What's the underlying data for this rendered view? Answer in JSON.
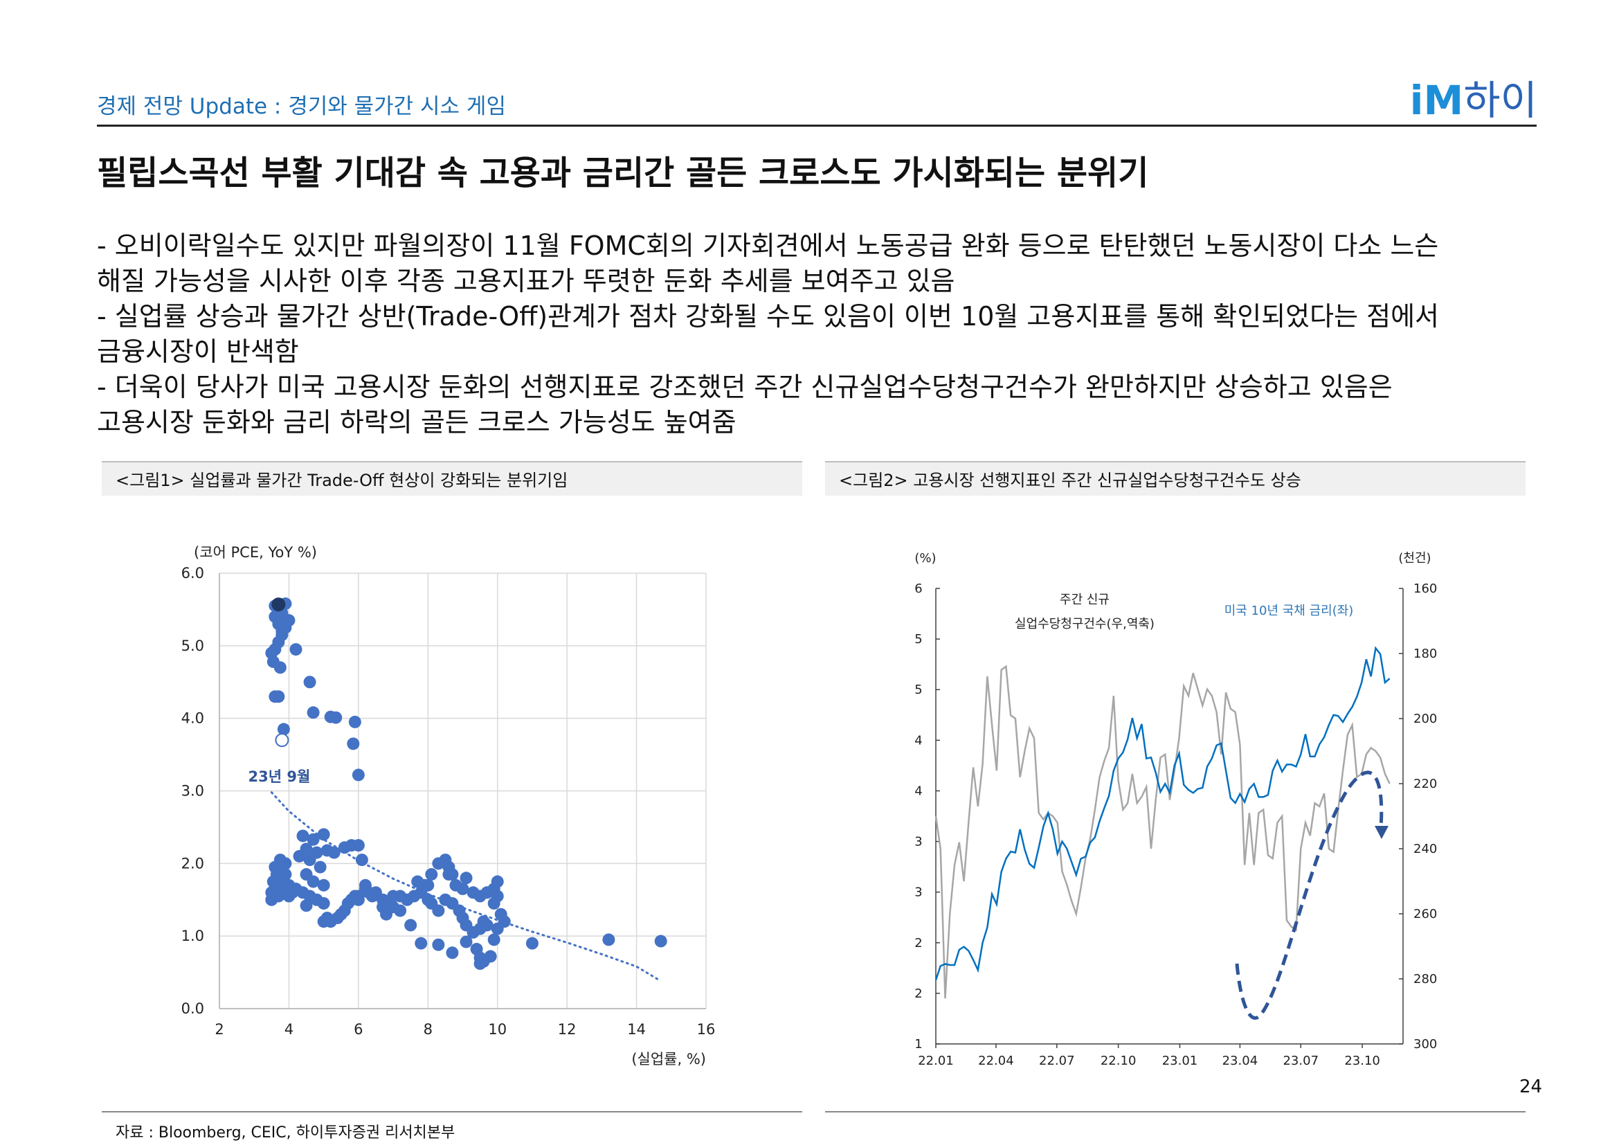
{
  "header": {
    "section_title": "경제 전망 Update : 경기와 물가간 시소 게임",
    "logo_im": "iM",
    "logo_text": "하이"
  },
  "main_title": "필립스곡선 부활 기대감 속 고용과 금리간 골든 크로스도 가시화되는 분위기",
  "bullets": [
    "- 오비이락일수도 있지만 파월의장이 11월 FOMC회의 기자회견에서 노동공급 완화 등으로 탄탄했던 노동시장이 다소 느슨",
    "해질 가능성을 시사한 이후 각종 고용지표가 뚜렷한 둔화 추세를 보여주고 있음",
    "- 실업률 상승과 물가간 상반(Trade-Off)관계가 점차 강화될 수도 있음이 이번 10월 고용지표를 통해 확인되었다는 점에서",
    "금융시장이 반색함",
    "- 더욱이 당사가 미국 고용시장 둔화의 선행지표로 강조했던 주간 신규실업수당청구건수가 완만하지만 상승하고 있음은",
    "고용시장 둔화와 금리 하락의 골든 크로스 가능성도 높여줌"
  ],
  "figure1": {
    "caption": "<그림1> 실업률과 물가간 Trade-Off 현상이 강화되는 분위기임"
  },
  "figure2": {
    "caption": "<그림2> 고용시장 선행지표인 주간 신규실업수당청구건수도 상승"
  },
  "source": "자료 : Bloomberg, CEIC, 하이투자증권 리서치본부",
  "page_number": "24",
  "colors": {
    "accent": "#1f6fb3",
    "scatter": "#4472c4",
    "highlight": "#1f3864",
    "gray_series": "#a6a6a6",
    "blue_series": "#0070c0",
    "arrow": "#2f5597"
  },
  "chart_data": [
    {
      "type": "scatter",
      "ylabel": "(코어 PCE, YoY %)",
      "xlabel": "(실업률, %)",
      "xlim": [
        2,
        16
      ],
      "ylim": [
        0,
        6
      ],
      "x_ticks": [
        "2",
        "4",
        "6",
        "8",
        "10",
        "12",
        "14",
        "16"
      ],
      "y_ticks": [
        "0.0",
        "1.0",
        "2.0",
        "3.0",
        "4.0",
        "5.0",
        "6.0"
      ],
      "grid": true,
      "annotation": "23년 9월",
      "highlight_point": [
        3.8,
        3.7
      ],
      "latest_point": [
        3.7,
        5.57
      ],
      "trendline": {
        "style": "dotted",
        "x": [
          3.5,
          4,
          5,
          6,
          7,
          8,
          9,
          10,
          11,
          12,
          13,
          14,
          14.7
        ],
        "y": [
          2.98,
          2.72,
          2.33,
          2.04,
          1.79,
          1.58,
          1.39,
          1.22,
          1.06,
          0.91,
          0.75,
          0.58,
          0.38
        ]
      },
      "points": [
        [
          3.6,
          5.55
        ],
        [
          3.7,
          5.5
        ],
        [
          3.8,
          5.45
        ],
        [
          3.9,
          5.58
        ],
        [
          3.6,
          5.4
        ],
        [
          3.7,
          5.3
        ],
        [
          3.8,
          5.2
        ],
        [
          4.0,
          5.35
        ],
        [
          3.9,
          5.25
        ],
        [
          3.8,
          5.15
        ],
        [
          3.7,
          5.05
        ],
        [
          3.6,
          4.95
        ],
        [
          3.5,
          4.9
        ],
        [
          3.55,
          4.78
        ],
        [
          3.75,
          4.7
        ],
        [
          4.2,
          4.95
        ],
        [
          4.6,
          4.5
        ],
        [
          4.7,
          4.08
        ],
        [
          5.2,
          4.02
        ],
        [
          5.35,
          4.01
        ],
        [
          5.9,
          3.95
        ],
        [
          5.85,
          3.65
        ],
        [
          6.0,
          3.22
        ],
        [
          3.6,
          4.3
        ],
        [
          3.7,
          4.3
        ],
        [
          3.85,
          3.85
        ],
        [
          4.4,
          2.38
        ],
        [
          4.7,
          2.33
        ],
        [
          5.0,
          2.4
        ],
        [
          4.5,
          2.2
        ],
        [
          4.8,
          2.15
        ],
        [
          5.1,
          2.18
        ],
        [
          5.3,
          2.15
        ],
        [
          5.6,
          2.22
        ],
        [
          5.8,
          2.25
        ],
        [
          6.0,
          2.25
        ],
        [
          6.1,
          2.05
        ],
        [
          4.3,
          2.1
        ],
        [
          4.6,
          2.05
        ],
        [
          4.9,
          1.95
        ],
        [
          4.5,
          1.85
        ],
        [
          4.7,
          1.75
        ],
        [
          5.0,
          1.7
        ],
        [
          4.2,
          1.65
        ],
        [
          4.4,
          1.6
        ],
        [
          4.6,
          1.55
        ],
        [
          4.8,
          1.5
        ],
        [
          5.0,
          1.45
        ],
        [
          4.5,
          1.42
        ],
        [
          3.5,
          1.6
        ],
        [
          3.6,
          1.7
        ],
        [
          3.7,
          1.8
        ],
        [
          3.8,
          1.9
        ],
        [
          3.9,
          2.0
        ],
        [
          3.6,
          1.95
        ],
        [
          3.7,
          1.55
        ],
        [
          3.8,
          1.65
        ],
        [
          3.5,
          1.5
        ],
        [
          3.9,
          1.85
        ],
        [
          4.0,
          1.7
        ],
        [
          4.1,
          1.6
        ],
        [
          3.85,
          1.75
        ],
        [
          3.65,
          1.85
        ],
        [
          3.75,
          2.05
        ],
        [
          4.0,
          1.55
        ],
        [
          3.55,
          1.75
        ],
        [
          5.1,
          1.25
        ],
        [
          5.2,
          1.2
        ],
        [
          5.4,
          1.25
        ],
        [
          5.5,
          1.3
        ],
        [
          5.6,
          1.35
        ],
        [
          5.7,
          1.45
        ],
        [
          5.0,
          1.2
        ],
        [
          5.8,
          1.5
        ],
        [
          6.0,
          1.55
        ],
        [
          6.2,
          1.7
        ],
        [
          6.3,
          1.6
        ],
        [
          6.5,
          1.6
        ],
        [
          6.7,
          1.5
        ],
        [
          6.9,
          1.45
        ],
        [
          7.0,
          1.4
        ],
        [
          7.2,
          1.55
        ],
        [
          7.4,
          1.5
        ],
        [
          7.5,
          1.15
        ],
        [
          7.8,
          1.6
        ],
        [
          8.0,
          1.7
        ],
        [
          8.1,
          1.85
        ],
        [
          8.3,
          2.0
        ],
        [
          8.5,
          2.05
        ],
        [
          8.6,
          1.95
        ],
        [
          8.7,
          1.85
        ],
        [
          8.8,
          1.7
        ],
        [
          9.0,
          1.65
        ],
        [
          9.1,
          1.8
        ],
        [
          9.3,
          1.6
        ],
        [
          9.5,
          1.55
        ],
        [
          9.7,
          1.6
        ],
        [
          9.9,
          1.65
        ],
        [
          10.0,
          1.75
        ],
        [
          10.0,
          1.55
        ],
        [
          9.9,
          1.45
        ],
        [
          10.1,
          1.3
        ],
        [
          10.2,
          1.2
        ],
        [
          9.7,
          1.15
        ],
        [
          9.5,
          1.1
        ],
        [
          9.3,
          1.05
        ],
        [
          9.1,
          1.15
        ],
        [
          9.0,
          1.25
        ],
        [
          8.9,
          1.35
        ],
        [
          8.7,
          1.45
        ],
        [
          8.5,
          1.5
        ],
        [
          8.3,
          1.35
        ],
        [
          8.1,
          1.45
        ],
        [
          7.9,
          1.7
        ],
        [
          7.7,
          1.75
        ],
        [
          7.6,
          1.55
        ],
        [
          7.0,
          1.55
        ],
        [
          6.7,
          1.4
        ],
        [
          6.4,
          1.55
        ],
        [
          6.2,
          1.65
        ],
        [
          6.0,
          1.5
        ],
        [
          7.8,
          0.9
        ],
        [
          8.3,
          0.88
        ],
        [
          8.7,
          0.77
        ],
        [
          9.1,
          0.92
        ],
        [
          9.4,
          0.82
        ],
        [
          9.5,
          0.7
        ],
        [
          9.6,
          0.65
        ],
        [
          9.8,
          0.72
        ],
        [
          11.0,
          0.9
        ],
        [
          13.2,
          0.95
        ],
        [
          14.7,
          0.93
        ],
        [
          9.5,
          0.62
        ],
        [
          9.9,
          0.95
        ],
        [
          10.0,
          1.1
        ],
        [
          9.6,
          1.2
        ],
        [
          8.6,
          1.85
        ],
        [
          8.0,
          1.5
        ],
        [
          7.2,
          1.35
        ],
        [
          6.8,
          1.3
        ],
        [
          5.9,
          1.55
        ]
      ]
    },
    {
      "type": "line",
      "ylabel_left": "(%)",
      "ylabel_right": "(천건)",
      "x_ticks": [
        "22.01",
        "22.04",
        "22.07",
        "22.10",
        "23.01",
        "23.04",
        "23.07",
        "23.10"
      ],
      "y_left_ticks": [
        "1",
        "2",
        "2",
        "3",
        "3",
        "4",
        "4",
        "5",
        "5",
        "6"
      ],
      "y_right_ticks": [
        "160",
        "180",
        "200",
        "220",
        "240",
        "260",
        "280",
        "300"
      ],
      "y_left_range": [
        1,
        5.5
      ],
      "y_right_range": [
        300,
        160
      ],
      "y_right_inverted": true,
      "series": [
        {
          "name": "주간 신규 실업수당청구건수(우,역축)",
          "name_line1": "주간 신규",
          "name_line2": "실업수당청구건수(우,역축)",
          "axis": "right",
          "x": [
            "2022-01-01",
            "2022-01-08",
            "2022-01-15",
            "2022-01-22",
            "2022-01-29",
            "2022-02-05",
            "2022-02-12",
            "2022-02-19",
            "2022-02-26",
            "2022-03-05",
            "2022-03-12",
            "2022-03-19",
            "2022-03-26",
            "2022-04-02",
            "2022-04-09",
            "2022-04-16",
            "2022-04-23",
            "2022-04-30",
            "2022-05-07",
            "2022-05-14",
            "2022-05-21",
            "2022-05-28",
            "2022-06-04",
            "2022-06-11",
            "2022-06-18",
            "2022-06-25",
            "2022-07-02",
            "2022-07-09",
            "2022-07-16",
            "2022-07-23",
            "2022-07-30",
            "2022-08-06",
            "2022-08-13",
            "2022-08-20",
            "2022-08-27",
            "2022-09-03",
            "2022-09-10",
            "2022-09-17",
            "2022-09-24",
            "2022-10-01",
            "2022-10-08",
            "2022-10-15",
            "2022-10-22",
            "2022-10-29",
            "2022-11-05",
            "2022-11-12",
            "2022-11-19",
            "2022-11-26",
            "2022-12-03",
            "2022-12-10",
            "2022-12-17",
            "2022-12-24",
            "2022-12-31",
            "2023-01-07",
            "2023-01-14",
            "2023-01-21",
            "2023-01-28",
            "2023-02-04",
            "2023-02-11",
            "2023-02-18",
            "2023-02-25",
            "2023-03-04",
            "2023-03-11",
            "2023-03-18",
            "2023-03-25",
            "2023-04-01",
            "2023-04-08",
            "2023-04-15",
            "2023-04-22",
            "2023-04-29",
            "2023-05-06",
            "2023-05-13",
            "2023-05-20",
            "2023-05-27",
            "2023-06-03",
            "2023-06-10",
            "2023-06-17",
            "2023-06-24",
            "2023-07-01",
            "2023-07-08",
            "2023-07-15",
            "2023-07-22",
            "2023-07-29",
            "2023-08-05",
            "2023-08-12",
            "2023-08-19",
            "2023-08-26",
            "2023-09-02",
            "2023-09-09",
            "2023-09-16",
            "2023-09-23",
            "2023-09-30",
            "2023-10-07",
            "2023-10-14",
            "2023-10-21",
            "2023-10-28",
            "2023-11-04",
            "2023-11-11"
          ],
          "values": [
            230,
            240,
            286,
            260,
            245,
            238,
            250,
            232,
            215,
            227,
            214,
            187,
            202,
            216,
            185,
            184,
            199,
            200,
            218,
            210,
            203,
            206,
            229,
            231,
            229,
            230,
            232,
            247,
            251,
            256,
            260,
            252,
            243,
            237,
            228,
            218,
            213,
            209,
            193,
            219,
            228,
            226,
            217,
            226,
            224,
            221,
            240,
            225,
            212,
            211,
            225,
            216,
            206,
            190,
            193,
            186,
            191,
            196,
            191,
            193,
            198,
            211,
            192,
            197,
            198,
            208,
            245,
            229,
            245,
            229,
            228,
            242,
            243,
            232,
            230,
            262,
            264,
            265,
            240,
            232,
            236,
            226,
            227,
            223,
            240,
            241,
            228,
            216,
            205,
            202,
            218,
            217,
            211,
            209,
            210,
            212,
            217,
            220
          ]
        },
        {
          "name": "미국 10년 국채 금리(좌)",
          "axis": "left",
          "x": [
            "2022-01-01",
            "2022-01-08",
            "2022-01-15",
            "2022-01-22",
            "2022-01-29",
            "2022-02-05",
            "2022-02-12",
            "2022-02-19",
            "2022-02-26",
            "2022-03-05",
            "2022-03-12",
            "2022-03-19",
            "2022-03-26",
            "2022-04-02",
            "2022-04-09",
            "2022-04-16",
            "2022-04-23",
            "2022-04-30",
            "2022-05-07",
            "2022-05-14",
            "2022-05-21",
            "2022-05-28",
            "2022-06-04",
            "2022-06-11",
            "2022-06-18",
            "2022-06-25",
            "2022-07-02",
            "2022-07-09",
            "2022-07-16",
            "2022-07-23",
            "2022-07-30",
            "2022-08-06",
            "2022-08-13",
            "2022-08-20",
            "2022-08-27",
            "2022-09-03",
            "2022-09-10",
            "2022-09-17",
            "2022-09-24",
            "2022-10-01",
            "2022-10-08",
            "2022-10-15",
            "2022-10-22",
            "2022-10-29",
            "2022-11-05",
            "2022-11-12",
            "2022-11-19",
            "2022-11-26",
            "2022-12-03",
            "2022-12-10",
            "2022-12-17",
            "2022-12-24",
            "2022-12-31",
            "2023-01-07",
            "2023-01-14",
            "2023-01-21",
            "2023-01-28",
            "2023-02-04",
            "2023-02-11",
            "2023-02-18",
            "2023-02-25",
            "2023-03-04",
            "2023-03-11",
            "2023-03-18",
            "2023-03-25",
            "2023-04-01",
            "2023-04-08",
            "2023-04-15",
            "2023-04-22",
            "2023-04-29",
            "2023-05-06",
            "2023-05-13",
            "2023-05-20",
            "2023-05-27",
            "2023-06-03",
            "2023-06-10",
            "2023-06-17",
            "2023-06-24",
            "2023-07-01",
            "2023-07-08",
            "2023-07-15",
            "2023-07-22",
            "2023-07-29",
            "2023-08-05",
            "2023-08-12",
            "2023-08-19",
            "2023-08-26",
            "2023-09-02",
            "2023-09-09",
            "2023-09-16",
            "2023-09-23",
            "2023-09-30",
            "2023-10-07",
            "2023-10-14",
            "2023-10-21",
            "2023-10-28",
            "2023-11-04",
            "2023-11-11"
          ],
          "values": [
            1.63,
            1.77,
            1.79,
            1.78,
            1.78,
            1.93,
            1.96,
            1.92,
            1.83,
            1.73,
            2.0,
            2.15,
            2.48,
            2.38,
            2.7,
            2.83,
            2.9,
            2.89,
            3.12,
            2.92,
            2.78,
            2.74,
            2.94,
            3.15,
            3.28,
            3.12,
            2.88,
            3.0,
            2.93,
            2.8,
            2.67,
            2.83,
            2.85,
            2.99,
            3.04,
            3.2,
            3.33,
            3.45,
            3.7,
            3.82,
            3.88,
            4.01,
            4.22,
            4.02,
            4.16,
            3.82,
            3.83,
            3.68,
            3.49,
            3.57,
            3.48,
            3.75,
            3.87,
            3.56,
            3.51,
            3.48,
            3.52,
            3.53,
            3.74,
            3.82,
            3.95,
            3.97,
            3.7,
            3.43,
            3.38,
            3.47,
            3.39,
            3.52,
            3.57,
            3.44,
            3.44,
            3.46,
            3.7,
            3.8,
            3.69,
            3.76,
            3.76,
            3.74,
            3.86,
            4.06,
            3.84,
            3.84,
            3.96,
            4.03,
            4.15,
            4.25,
            4.24,
            4.18,
            4.26,
            4.33,
            4.43,
            4.57,
            4.8,
            4.63,
            4.91,
            4.85,
            4.57,
            4.61
          ]
        }
      ]
    }
  ]
}
